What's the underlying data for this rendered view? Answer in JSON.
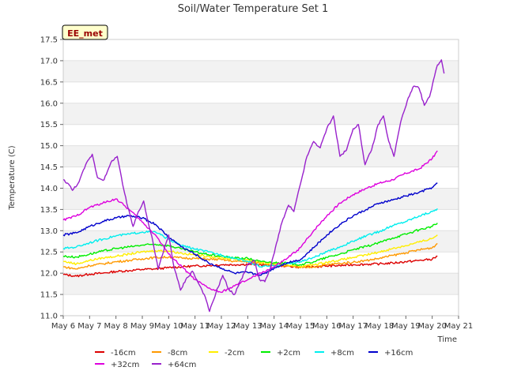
{
  "chart_data": {
    "type": "line",
    "title": "Soil/Water Temperature Set 1",
    "xlabel": "Time",
    "ylabel": "Temperature (C)",
    "badge": "EE_met",
    "xlim": [
      6,
      21
    ],
    "ylim": [
      11.0,
      17.5
    ],
    "x_ticks": [
      {
        "v": 6,
        "label": "May 6"
      },
      {
        "v": 7,
        "label": "May 7"
      },
      {
        "v": 8,
        "label": "May 8"
      },
      {
        "v": 9,
        "label": "May 9"
      },
      {
        "v": 10,
        "label": "May 10"
      },
      {
        "v": 11,
        "label": "May 11"
      },
      {
        "v": 12,
        "label": "May 12"
      },
      {
        "v": 13,
        "label": "May 13"
      },
      {
        "v": 14,
        "label": "May 14"
      },
      {
        "v": 15,
        "label": "May 15"
      },
      {
        "v": 16,
        "label": "May 16"
      },
      {
        "v": 17,
        "label": "May 17"
      },
      {
        "v": 18,
        "label": "May 18"
      },
      {
        "v": 19,
        "label": "May 19"
      },
      {
        "v": 20,
        "label": "May 20"
      },
      {
        "v": 21,
        "label": "May 21"
      }
    ],
    "y_ticks": [
      "11.0",
      "11.5",
      "12.0",
      "12.5",
      "13.0",
      "13.5",
      "14.0",
      "14.5",
      "15.0",
      "15.5",
      "16.0",
      "16.5",
      "17.0",
      "17.5"
    ],
    "grid": "horizontal-bands",
    "legend_position": "bottom",
    "series": [
      {
        "name": "-16cm",
        "color": "#dd0000",
        "points": [
          [
            6.0,
            11.97
          ],
          [
            6.5,
            11.93
          ],
          [
            7.0,
            11.98
          ],
          [
            7.5,
            12.0
          ],
          [
            8.0,
            12.04
          ],
          [
            8.5,
            12.06
          ],
          [
            9.0,
            12.09
          ],
          [
            9.5,
            12.1
          ],
          [
            10.0,
            12.13
          ],
          [
            10.5,
            12.15
          ],
          [
            11.0,
            12.17
          ],
          [
            11.5,
            12.18
          ],
          [
            12.0,
            12.2
          ],
          [
            12.5,
            12.2
          ],
          [
            13.0,
            12.21
          ],
          [
            13.5,
            12.2
          ],
          [
            14.0,
            12.18
          ],
          [
            14.5,
            12.17
          ],
          [
            15.0,
            12.14
          ],
          [
            15.5,
            12.15
          ],
          [
            16.0,
            12.17
          ],
          [
            16.5,
            12.18
          ],
          [
            17.0,
            12.2
          ],
          [
            17.5,
            12.21
          ],
          [
            18.0,
            12.22
          ],
          [
            18.5,
            12.24
          ],
          [
            19.0,
            12.27
          ],
          [
            19.5,
            12.3
          ],
          [
            20.0,
            12.33
          ],
          [
            20.2,
            12.4
          ]
        ]
      },
      {
        "name": "-8cm",
        "color": "#ff9900",
        "points": [
          [
            6.0,
            12.15
          ],
          [
            6.5,
            12.1
          ],
          [
            7.0,
            12.18
          ],
          [
            7.5,
            12.22
          ],
          [
            8.0,
            12.27
          ],
          [
            8.5,
            12.3
          ],
          [
            9.0,
            12.34
          ],
          [
            9.5,
            12.37
          ],
          [
            10.0,
            12.38
          ],
          [
            10.5,
            12.36
          ],
          [
            11.0,
            12.35
          ],
          [
            11.5,
            12.33
          ],
          [
            12.0,
            12.32
          ],
          [
            12.5,
            12.28
          ],
          [
            13.0,
            12.27
          ],
          [
            13.5,
            12.23
          ],
          [
            14.0,
            12.2
          ],
          [
            14.5,
            12.17
          ],
          [
            15.0,
            12.13
          ],
          [
            15.5,
            12.15
          ],
          [
            16.0,
            12.2
          ],
          [
            16.5,
            12.23
          ],
          [
            17.0,
            12.26
          ],
          [
            17.5,
            12.3
          ],
          [
            18.0,
            12.35
          ],
          [
            18.5,
            12.42
          ],
          [
            19.0,
            12.48
          ],
          [
            19.5,
            12.55
          ],
          [
            20.0,
            12.6
          ],
          [
            20.2,
            12.7
          ]
        ]
      },
      {
        "name": "-2cm",
        "color": "#ffee00",
        "points": [
          [
            6.0,
            12.28
          ],
          [
            6.5,
            12.22
          ],
          [
            7.0,
            12.3
          ],
          [
            7.5,
            12.36
          ],
          [
            8.0,
            12.4
          ],
          [
            8.5,
            12.45
          ],
          [
            9.0,
            12.5
          ],
          [
            9.5,
            12.53
          ],
          [
            10.0,
            12.52
          ],
          [
            10.5,
            12.47
          ],
          [
            11.0,
            12.43
          ],
          [
            11.5,
            12.4
          ],
          [
            12.0,
            12.36
          ],
          [
            12.5,
            12.33
          ],
          [
            13.0,
            12.32
          ],
          [
            13.5,
            12.25
          ],
          [
            14.0,
            12.22
          ],
          [
            14.5,
            12.2
          ],
          [
            15.0,
            12.16
          ],
          [
            15.5,
            12.2
          ],
          [
            16.0,
            12.26
          ],
          [
            16.5,
            12.31
          ],
          [
            17.0,
            12.37
          ],
          [
            17.5,
            12.43
          ],
          [
            18.0,
            12.5
          ],
          [
            18.5,
            12.58
          ],
          [
            19.0,
            12.65
          ],
          [
            19.5,
            12.73
          ],
          [
            20.0,
            12.82
          ],
          [
            20.2,
            12.9
          ]
        ]
      },
      {
        "name": "+2cm",
        "color": "#00ee00",
        "points": [
          [
            6.0,
            12.4
          ],
          [
            6.5,
            12.38
          ],
          [
            7.0,
            12.45
          ],
          [
            7.5,
            12.52
          ],
          [
            8.0,
            12.58
          ],
          [
            8.5,
            12.62
          ],
          [
            9.0,
            12.66
          ],
          [
            9.5,
            12.68
          ],
          [
            10.0,
            12.65
          ],
          [
            10.5,
            12.57
          ],
          [
            11.0,
            12.5
          ],
          [
            11.5,
            12.44
          ],
          [
            12.0,
            12.4
          ],
          [
            12.5,
            12.36
          ],
          [
            13.0,
            12.35
          ],
          [
            13.5,
            12.27
          ],
          [
            14.0,
            12.25
          ],
          [
            14.5,
            12.24
          ],
          [
            15.0,
            12.2
          ],
          [
            15.5,
            12.27
          ],
          [
            16.0,
            12.37
          ],
          [
            16.5,
            12.45
          ],
          [
            17.0,
            12.55
          ],
          [
            17.5,
            12.63
          ],
          [
            18.0,
            12.72
          ],
          [
            18.5,
            12.83
          ],
          [
            19.0,
            12.92
          ],
          [
            19.5,
            13.02
          ],
          [
            20.0,
            13.1
          ],
          [
            20.2,
            13.18
          ]
        ]
      },
      {
        "name": "+8cm",
        "color": "#00eeee",
        "points": [
          [
            6.0,
            12.58
          ],
          [
            6.5,
            12.62
          ],
          [
            7.0,
            12.72
          ],
          [
            7.5,
            12.8
          ],
          [
            8.0,
            12.88
          ],
          [
            8.5,
            12.92
          ],
          [
            9.0,
            12.97
          ],
          [
            9.5,
            12.97
          ],
          [
            10.0,
            12.8
          ],
          [
            10.5,
            12.65
          ],
          [
            11.0,
            12.57
          ],
          [
            11.5,
            12.5
          ],
          [
            12.0,
            12.43
          ],
          [
            12.5,
            12.35
          ],
          [
            13.0,
            12.28
          ],
          [
            13.5,
            12.15
          ],
          [
            14.0,
            12.18
          ],
          [
            14.5,
            12.22
          ],
          [
            15.0,
            12.27
          ],
          [
            15.5,
            12.37
          ],
          [
            16.0,
            12.5
          ],
          [
            16.5,
            12.62
          ],
          [
            17.0,
            12.75
          ],
          [
            17.5,
            12.88
          ],
          [
            18.0,
            12.98
          ],
          [
            18.5,
            13.12
          ],
          [
            19.0,
            13.22
          ],
          [
            19.5,
            13.35
          ],
          [
            20.0,
            13.45
          ],
          [
            20.2,
            13.52
          ]
        ]
      },
      {
        "name": "+16cm",
        "color": "#0000cc",
        "points": [
          [
            6.0,
            12.9
          ],
          [
            6.5,
            12.95
          ],
          [
            7.0,
            13.1
          ],
          [
            7.5,
            13.22
          ],
          [
            8.0,
            13.3
          ],
          [
            8.5,
            13.35
          ],
          [
            9.0,
            13.3
          ],
          [
            9.5,
            13.15
          ],
          [
            10.0,
            12.85
          ],
          [
            10.5,
            12.62
          ],
          [
            11.0,
            12.45
          ],
          [
            11.5,
            12.25
          ],
          [
            12.0,
            12.12
          ],
          [
            12.5,
            12.0
          ],
          [
            13.0,
            12.02
          ],
          [
            13.5,
            11.95
          ],
          [
            14.0,
            12.12
          ],
          [
            14.5,
            12.25
          ],
          [
            15.0,
            12.32
          ],
          [
            15.5,
            12.6
          ],
          [
            16.0,
            12.9
          ],
          [
            16.5,
            13.15
          ],
          [
            17.0,
            13.35
          ],
          [
            17.5,
            13.5
          ],
          [
            18.0,
            13.65
          ],
          [
            18.5,
            13.72
          ],
          [
            19.0,
            13.82
          ],
          [
            19.5,
            13.9
          ],
          [
            20.0,
            14.02
          ],
          [
            20.2,
            14.12
          ]
        ]
      },
      {
        "name": "+32cm",
        "color": "#dd00dd",
        "points": [
          [
            6.0,
            13.25
          ],
          [
            6.5,
            13.35
          ],
          [
            7.0,
            13.55
          ],
          [
            7.5,
            13.65
          ],
          [
            8.0,
            13.75
          ],
          [
            8.5,
            13.5
          ],
          [
            9.0,
            13.2
          ],
          [
            9.5,
            12.9
          ],
          [
            10.0,
            12.45
          ],
          [
            10.5,
            12.15
          ],
          [
            11.0,
            11.85
          ],
          [
            11.5,
            11.65
          ],
          [
            12.0,
            11.55
          ],
          [
            12.5,
            11.7
          ],
          [
            13.0,
            11.85
          ],
          [
            13.5,
            12.0
          ],
          [
            14.0,
            12.15
          ],
          [
            14.5,
            12.35
          ],
          [
            15.0,
            12.6
          ],
          [
            15.5,
            13.0
          ],
          [
            16.0,
            13.35
          ],
          [
            16.5,
            13.65
          ],
          [
            17.0,
            13.85
          ],
          [
            17.5,
            14.0
          ],
          [
            18.0,
            14.12
          ],
          [
            18.5,
            14.2
          ],
          [
            19.0,
            14.35
          ],
          [
            19.5,
            14.45
          ],
          [
            20.0,
            14.7
          ],
          [
            20.2,
            14.88
          ]
        ]
      },
      {
        "name": "+64cm",
        "color": "#9922cc",
        "points": [
          [
            6.0,
            14.2
          ],
          [
            6.2,
            14.1
          ],
          [
            6.35,
            13.95
          ],
          [
            6.6,
            14.15
          ],
          [
            6.85,
            14.55
          ],
          [
            7.1,
            14.8
          ],
          [
            7.3,
            14.25
          ],
          [
            7.55,
            14.2
          ],
          [
            7.85,
            14.65
          ],
          [
            8.05,
            14.75
          ],
          [
            8.25,
            14.1
          ],
          [
            8.45,
            13.55
          ],
          [
            8.65,
            13.1
          ],
          [
            8.85,
            13.45
          ],
          [
            9.05,
            13.7
          ],
          [
            9.2,
            13.25
          ],
          [
            9.4,
            12.75
          ],
          [
            9.6,
            12.1
          ],
          [
            9.8,
            12.5
          ],
          [
            10.0,
            12.9
          ],
          [
            10.2,
            12.15
          ],
          [
            10.45,
            11.6
          ],
          [
            10.65,
            11.85
          ],
          [
            10.9,
            12.05
          ],
          [
            11.1,
            11.8
          ],
          [
            11.35,
            11.5
          ],
          [
            11.55,
            11.1
          ],
          [
            11.8,
            11.55
          ],
          [
            12.05,
            11.95
          ],
          [
            12.3,
            11.6
          ],
          [
            12.5,
            11.5
          ],
          [
            12.75,
            11.85
          ],
          [
            13.0,
            12.2
          ],
          [
            13.25,
            12.3
          ],
          [
            13.45,
            11.85
          ],
          [
            13.65,
            11.8
          ],
          [
            13.85,
            12.1
          ],
          [
            14.05,
            12.6
          ],
          [
            14.3,
            13.2
          ],
          [
            14.55,
            13.6
          ],
          [
            14.75,
            13.45
          ],
          [
            15.0,
            14.1
          ],
          [
            15.25,
            14.75
          ],
          [
            15.5,
            15.1
          ],
          [
            15.75,
            14.95
          ],
          [
            16.0,
            15.4
          ],
          [
            16.25,
            15.7
          ],
          [
            16.5,
            14.75
          ],
          [
            16.75,
            14.9
          ],
          [
            17.0,
            15.4
          ],
          [
            17.2,
            15.5
          ],
          [
            17.45,
            14.55
          ],
          [
            17.7,
            14.9
          ],
          [
            17.95,
            15.5
          ],
          [
            18.15,
            15.7
          ],
          [
            18.35,
            15.1
          ],
          [
            18.55,
            14.75
          ],
          [
            18.8,
            15.55
          ],
          [
            19.05,
            16.05
          ],
          [
            19.3,
            16.4
          ],
          [
            19.5,
            16.35
          ],
          [
            19.7,
            15.95
          ],
          [
            19.9,
            16.15
          ],
          [
            20.05,
            16.55
          ],
          [
            20.2,
            16.9
          ],
          [
            20.35,
            17.02
          ],
          [
            20.45,
            16.7
          ]
        ]
      }
    ]
  }
}
